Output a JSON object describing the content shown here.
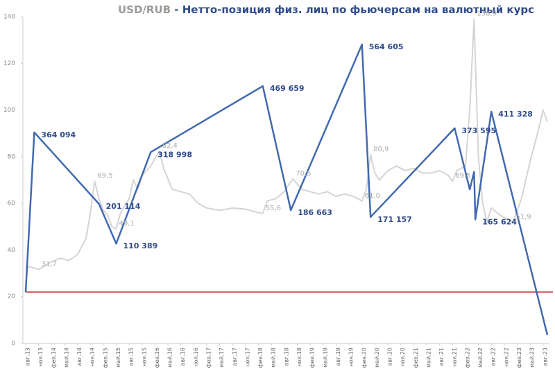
{
  "chart_data": {
    "type": "line",
    "title_prefix": "USD/RUB",
    "title": "- Нетто-позиция физ. лиц по фьючерсам на валютный курс",
    "xlim": [
      0,
      121
    ],
    "xticks": [
      {
        "value": 0,
        "label": "авг.13"
      },
      {
        "value": 3,
        "label": "ноя.13"
      },
      {
        "value": 6,
        "label": "фев.14"
      },
      {
        "value": 9,
        "label": "май.14"
      },
      {
        "value": 12,
        "label": "авг.14"
      },
      {
        "value": 15,
        "label": "ноя.14"
      },
      {
        "value": 18,
        "label": "фев.15"
      },
      {
        "value": 21,
        "label": "май.15"
      },
      {
        "value": 24,
        "label": "авг.15"
      },
      {
        "value": 27,
        "label": "ноя.15"
      },
      {
        "value": 30,
        "label": "фев.16"
      },
      {
        "value": 33,
        "label": "май.16"
      },
      {
        "value": 36,
        "label": "авг.16"
      },
      {
        "value": 39,
        "label": "ноя.16"
      },
      {
        "value": 42,
        "label": "фев.17"
      },
      {
        "value": 45,
        "label": "май.17"
      },
      {
        "value": 48,
        "label": "авг.17"
      },
      {
        "value": 51,
        "label": "ноя.17"
      },
      {
        "value": 54,
        "label": "фев.18"
      },
      {
        "value": 57,
        "label": "май.18"
      },
      {
        "value": 60,
        "label": "авг.18"
      },
      {
        "value": 63,
        "label": "ноя.18"
      },
      {
        "value": 66,
        "label": "фев.19"
      },
      {
        "value": 69,
        "label": "май.19"
      },
      {
        "value": 72,
        "label": "авг.19"
      },
      {
        "value": 75,
        "label": "ноя.19"
      },
      {
        "value": 78,
        "label": "фев.20"
      },
      {
        "value": 81,
        "label": "май.20"
      },
      {
        "value": 84,
        "label": "авг.20"
      },
      {
        "value": 87,
        "label": "ноя.20"
      },
      {
        "value": 90,
        "label": "фев.21"
      },
      {
        "value": 93,
        "label": "май.21"
      },
      {
        "value": 96,
        "label": "авг.21"
      },
      {
        "value": 99,
        "label": "ноя.21"
      },
      {
        "value": 102,
        "label": "фев.22"
      },
      {
        "value": 105,
        "label": "май.22"
      },
      {
        "value": 108,
        "label": "авг.22"
      },
      {
        "value": 111,
        "label": "ноя.22"
      },
      {
        "value": 114,
        "label": "фев.23"
      },
      {
        "value": 117,
        "label": "май.23"
      },
      {
        "value": 120,
        "label": "авг.23"
      }
    ],
    "ylim": [
      0,
      140
    ],
    "yticks": [
      0,
      20,
      40,
      60,
      80,
      100,
      120,
      140
    ],
    "y2lim": [
      -117000,
      628000
    ],
    "reference_line": {
      "axis": "y2",
      "value": 0,
      "color": "#c00000"
    },
    "series": [
      {
        "name": "USD/RUB",
        "color": "#d4d4d4",
        "x": [
          0,
          1,
          3,
          6,
          8,
          10,
          12,
          14,
          15,
          16,
          17,
          18,
          19,
          20,
          21,
          22,
          24,
          25,
          26,
          27,
          29,
          31,
          32,
          34,
          36,
          38,
          40,
          42,
          45,
          48,
          51,
          54,
          55,
          56,
          58,
          60,
          61,
          62,
          64,
          66,
          68,
          70,
          72,
          74,
          76,
          78,
          79,
          80,
          81,
          82,
          84,
          86,
          88,
          90,
          92,
          94,
          96,
          98,
          99,
          100,
          102,
          103,
          104,
          105,
          106,
          107,
          108,
          110,
          113,
          114,
          115,
          116,
          117,
          118,
          119,
          120,
          121
        ],
        "values": [
          32.5,
          32.8,
          31.7,
          35,
          36.5,
          35.5,
          38,
          45,
          56,
          69.5,
          62,
          57,
          55,
          50,
          49.1,
          56,
          62,
          70,
          66,
          72,
          76,
          82.4,
          75,
          66,
          65,
          64,
          60,
          58,
          57,
          58,
          57.5,
          56,
          55.6,
          61,
          62,
          65,
          68,
          70.5,
          66,
          65,
          64,
          65,
          63,
          64,
          63,
          61,
          66,
          80.9,
          73,
          70,
          74,
          76,
          74,
          75,
          73,
          73,
          74,
          72,
          69.5,
          74,
          76,
          100,
          138.9,
          80,
          60,
          52,
          58,
          55,
          51.9,
          57,
          62,
          70,
          78,
          85,
          92,
          100,
          95
        ]
      },
      {
        "name": "Нетто-позиция",
        "color": "#4169b0",
        "axis": "y2",
        "x": [
          0,
          2,
          17,
          21,
          29,
          55,
          61.5,
          78,
          80,
          99.5,
          103,
          104,
          104.3,
          108,
          121
        ],
        "values": [
          0,
          364094,
          201114,
          110389,
          318998,
          469659,
          186663,
          564605,
          171157,
          373595,
          234000,
          274000,
          165624,
          411328,
          -98000
        ],
        "value_labels": [
          "",
          "364 094",
          "201 114",
          "110 389",
          "318 998",
          "469 659",
          "186 663",
          "564 605",
          "171 157",
          "373 595",
          null,
          null,
          "165 624",
          "411 328",
          null
        ]
      }
    ],
    "annotations": [
      {
        "x": 3,
        "y": 31.7,
        "label": "31,7"
      },
      {
        "x": 16,
        "y": 69.5,
        "label": "69,5"
      },
      {
        "x": 21,
        "y": 49.1,
        "label": "49,1"
      },
      {
        "x": 31,
        "y": 82.4,
        "label": "82,4"
      },
      {
        "x": 55,
        "y": 55.6,
        "label": "55,6"
      },
      {
        "x": 62,
        "y": 70.5,
        "label": "70,5"
      },
      {
        "x": 80,
        "y": 80.9,
        "label": "80,9"
      },
      {
        "x": 78,
        "y": 61,
        "label": "61,0"
      },
      {
        "x": 99,
        "y": 69.5,
        "label": "69,5"
      },
      {
        "x": 104,
        "y": 138.9,
        "label": "138,9"
      },
      {
        "x": 113,
        "y": 51.9,
        "label": "51,9"
      }
    ]
  }
}
